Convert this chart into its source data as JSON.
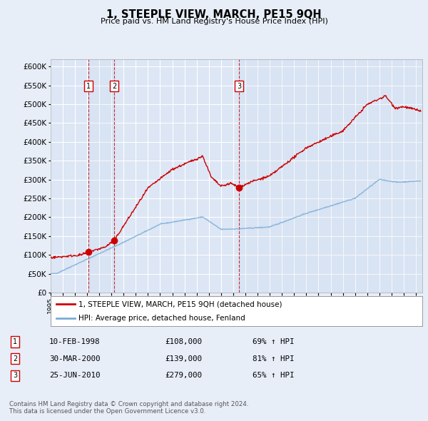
{
  "title": "1, STEEPLE VIEW, MARCH, PE15 9QH",
  "subtitle": "Price paid vs. HM Land Registry's House Price Index (HPI)",
  "ylim": [
    0,
    620000
  ],
  "yticks": [
    0,
    50000,
    100000,
    150000,
    200000,
    250000,
    300000,
    350000,
    400000,
    450000,
    500000,
    550000,
    600000
  ],
  "xlim_start": 1995.0,
  "xlim_end": 2025.5,
  "bg_color": "#e8eef8",
  "plot_bg": "#dce6f5",
  "grid_color": "#ffffff",
  "red_color": "#cc0000",
  "blue_color": "#7aacd6",
  "sale_points": [
    {
      "date_x": 1998.11,
      "price": 108000,
      "label": "1",
      "date_str": "10-FEB-1998",
      "price_str": "£108,000",
      "hpi_str": "69% ↑ HPI"
    },
    {
      "date_x": 2000.24,
      "price": 139000,
      "label": "2",
      "date_str": "30-MAR-2000",
      "price_str": "£139,000",
      "hpi_str": "81% ↑ HPI"
    },
    {
      "date_x": 2010.48,
      "price": 279000,
      "label": "3",
      "date_str": "25-JUN-2010",
      "price_str": "£279,000",
      "hpi_str": "65% ↑ HPI"
    }
  ],
  "legend_line1": "1, STEEPLE VIEW, MARCH, PE15 9QH (detached house)",
  "legend_line2": "HPI: Average price, detached house, Fenland",
  "footer1": "Contains HM Land Registry data © Crown copyright and database right 2024.",
  "footer2": "This data is licensed under the Open Government Licence v3.0."
}
